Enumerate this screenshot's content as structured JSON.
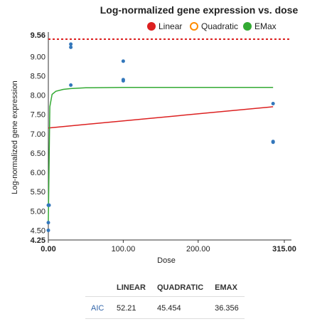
{
  "chart_data": {
    "type": "scatter",
    "title": "Log-normalized gene expression vs. dose",
    "xlabel": "Dose",
    "ylabel": "Log-normalized gene expression",
    "xlim": [
      0,
      315
    ],
    "ylim": [
      4.25,
      9.56
    ],
    "x_ticks": [
      "0.00",
      "100.00",
      "200.00",
      "315.00"
    ],
    "x_tick_values": [
      0,
      100,
      200,
      315
    ],
    "y_ticks": [
      "4.25",
      "4.50",
      "5.00",
      "5.50",
      "6.00",
      "6.50",
      "7.00",
      "7.50",
      "8.00",
      "8.50",
      "9.00",
      "9.56"
    ],
    "y_tick_values": [
      4.25,
      4.5,
      5.0,
      5.5,
      6.0,
      6.5,
      7.0,
      7.5,
      8.0,
      8.5,
      9.0,
      9.56
    ],
    "bold_ticks": [
      "0.00",
      "315.00",
      "4.25",
      "9.56"
    ],
    "grid": false,
    "legend_position": "top-right",
    "legend": [
      {
        "name": "Linear",
        "color": "#dc2020",
        "marker": "filled-circle"
      },
      {
        "name": "Quadratic",
        "color": "#ff8c00",
        "marker": "open-circle"
      },
      {
        "name": "EMax",
        "color": "#33aa33",
        "marker": "filled-circle"
      }
    ],
    "points": {
      "color": "#3377bb",
      "x": [
        0,
        0,
        0,
        1,
        30,
        30,
        30,
        100,
        100,
        100,
        300,
        300,
        300
      ],
      "y": [
        4.5,
        4.7,
        5.15,
        5.15,
        9.32,
        9.24,
        8.26,
        8.88,
        8.4,
        8.37,
        7.78,
        6.8,
        6.78
      ]
    },
    "reference_line": {
      "y": 9.45,
      "color": "#dc2020",
      "style": "dotted"
    },
    "series": [
      {
        "name": "Linear",
        "color": "#dc2020",
        "x": [
          0,
          300
        ],
        "y": [
          7.15,
          7.7
        ]
      },
      {
        "name": "EMax",
        "color": "#33aa33",
        "x": [
          0,
          2,
          5,
          10,
          20,
          30,
          50,
          100,
          200,
          300
        ],
        "y": [
          4.75,
          7.7,
          8.02,
          8.1,
          8.15,
          8.17,
          8.19,
          8.2,
          8.2,
          8.2
        ]
      }
    ]
  },
  "aic_table": {
    "columns": [
      "",
      "LINEAR",
      "QUADRATIC",
      "EMAX"
    ],
    "rows": [
      {
        "label": "AIC",
        "values": [
          "52.21",
          "45.454",
          "36.356"
        ]
      }
    ]
  }
}
